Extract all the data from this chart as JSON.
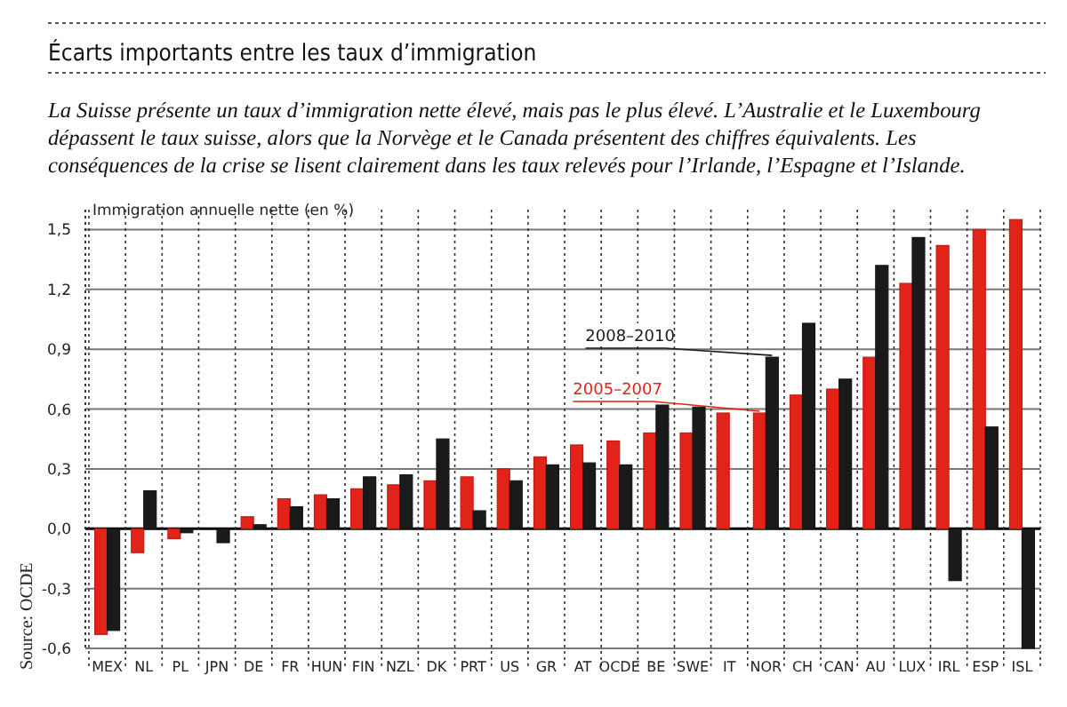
{
  "chart_data": {
    "type": "bar",
    "title": "Écarts importants entre les taux d’immigration",
    "subtitle": "La Suisse présente un taux d’immigration nette élevé, mais pas le plus élevé. L’Australie et le Luxembourg dépassent le taux suisse, alors que la Norvège et le Canada présentent des chiffres équivalents. Les conséquences de la crise se lisent clairement dans les taux relevés pour l’Irlande, l’Espagne et l’Islande.",
    "ylabel": "Immigration annuelle nette (en %)",
    "annotations": [
      "Source: OCDE"
    ],
    "categories": [
      "MEX",
      "NL",
      "PL",
      "JPN",
      "DE",
      "FR",
      "HUN",
      "FIN",
      "NZL",
      "DK",
      "PRT",
      "US",
      "GR",
      "AT",
      "OCDE",
      "BE",
      "SWE",
      "IT",
      "NOR",
      "CH",
      "CAN",
      "AU",
      "LUX",
      "IRL",
      "ESP",
      "ISL"
    ],
    "series": [
      {
        "name": "2005–2007",
        "color": "#e2231a",
        "values": [
          -0.53,
          -0.12,
          -0.05,
          null,
          0.06,
          0.15,
          0.17,
          0.2,
          0.22,
          0.24,
          0.26,
          0.3,
          0.36,
          0.42,
          0.44,
          0.48,
          0.48,
          0.58,
          0.58,
          0.67,
          0.7,
          0.86,
          1.23,
          1.42,
          1.5,
          1.55
        ]
      },
      {
        "name": "2008–2010",
        "color": "#1a1a1a",
        "values": [
          -0.51,
          0.19,
          -0.02,
          -0.07,
          0.02,
          0.11,
          0.15,
          0.26,
          0.27,
          0.45,
          0.09,
          0.24,
          0.32,
          0.33,
          0.32,
          0.62,
          0.61,
          null,
          0.86,
          1.03,
          0.75,
          1.32,
          1.46,
          -0.26,
          0.51,
          -0.6
        ]
      }
    ],
    "ylim": [
      -0.6,
      1.6
    ],
    "yticks": [
      {
        "value": -0.6,
        "label": "-0,6"
      },
      {
        "value": -0.3,
        "label": "-0,3"
      },
      {
        "value": 0,
        "label": "0,0"
      },
      {
        "value": 0.3,
        "label": "0,3"
      },
      {
        "value": 0.6,
        "label": "0,6"
      },
      {
        "value": 0.9,
        "label": "0,9"
      },
      {
        "value": 1.2,
        "label": "1,2"
      },
      {
        "value": 1.5,
        "label": "1,5"
      }
    ],
    "grid": "y",
    "legend": false
  }
}
